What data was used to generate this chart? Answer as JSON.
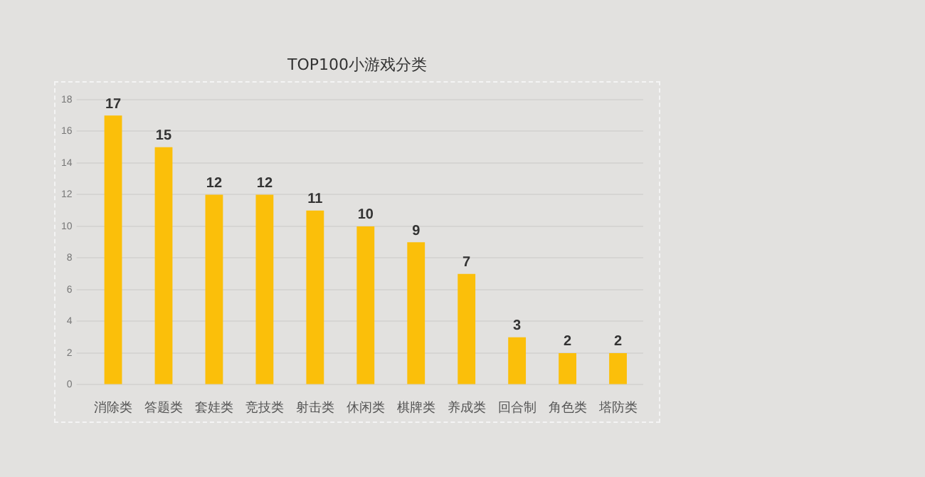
{
  "chart_data": {
    "type": "bar",
    "title": "TOP100小游戏分类",
    "categories": [
      "消除类",
      "答题类",
      "套娃类",
      "竞技类",
      "射击类",
      "休闲类",
      "棋牌类",
      "养成类",
      "回合制",
      "角色类",
      "塔防类"
    ],
    "values": [
      17,
      15,
      12,
      12,
      11,
      10,
      9,
      7,
      3,
      2,
      2
    ],
    "color": "#fbbf0a",
    "ylim": [
      0,
      18
    ],
    "yticks": [
      0,
      2,
      4,
      6,
      8,
      10,
      12,
      14,
      16,
      18
    ],
    "grid": "y",
    "data_labels": true
  }
}
